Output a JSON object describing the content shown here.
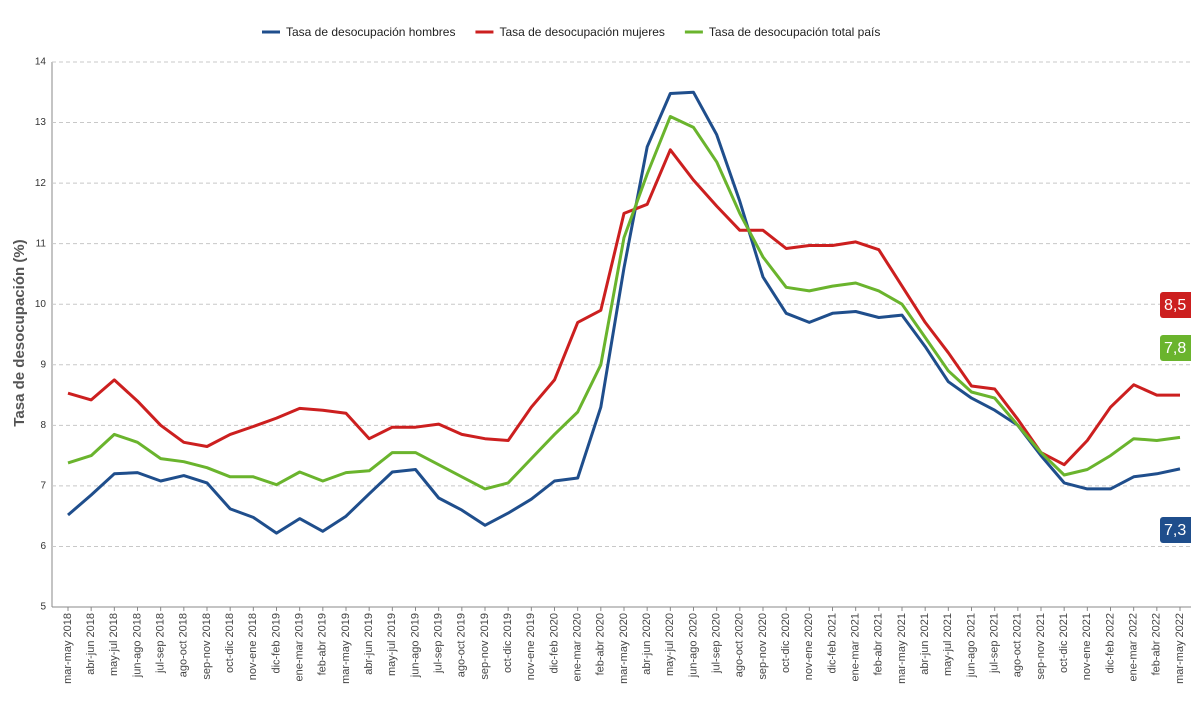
{
  "chart_data": {
    "type": "line",
    "y_label": "Tasa de desocupación (%)",
    "categories": [
      "mar-may 2018",
      "abr-jun 2018",
      "may-jul 2018",
      "jun-ago 2018",
      "jul-sep 2018",
      "ago-oct 2018",
      "sep-nov 2018",
      "oct-dic 2018",
      "nov-ene 2018",
      "dic-feb 2019",
      "ene-mar 2019",
      "feb-abr 2019",
      "mar-may 2019",
      "abr-jun 2019",
      "may-jul 2019",
      "jun-ago 2019",
      "jul-sep 2019",
      "ago-oct 2019",
      "sep-nov 2019",
      "oct-dic 2019",
      "nov-ene 2019",
      "dic-feb 2020",
      "ene-mar 2020",
      "feb-abr 2020",
      "mar-may 2020",
      "abr-jun 2020",
      "may-jul 2020",
      "jun-ago 2020",
      "jul-sep 2020",
      "ago-oct 2020",
      "sep-nov 2020",
      "oct-dic 2020",
      "nov-ene 2020",
      "dic-feb 2021",
      "ene-mar 2021",
      "feb-abr 2021",
      "mar-may 2021",
      "abr-jun 2021",
      "may-jul 2021",
      "jun-ago 2021",
      "jul-sep 2021",
      "ago-oct 2021",
      "sep-nov 2021",
      "oct-dic 2021",
      "nov-ene 2021",
      "dic-feb 2022",
      "ene-mar 2022",
      "feb-abr 2022",
      "mar-may 2022"
    ],
    "series": [
      {
        "name": "Tasa de desocupación hombres",
        "color": "#1f4e8c",
        "end_label": "7,3",
        "values": [
          6.52,
          6.85,
          7.2,
          7.22,
          7.08,
          7.17,
          7.05,
          6.62,
          6.48,
          6.22,
          6.46,
          6.25,
          6.5,
          6.87,
          7.23,
          7.27,
          6.8,
          6.6,
          6.35,
          6.55,
          6.78,
          7.08,
          7.13,
          8.3,
          10.6,
          12.6,
          13.48,
          13.5,
          12.8,
          11.7,
          10.45,
          9.85,
          9.7,
          9.85,
          9.88,
          9.78,
          9.82,
          9.3,
          8.72,
          8.45,
          8.25,
          8.0,
          7.5,
          7.05,
          6.95,
          6.95,
          7.15,
          7.2,
          7.28
        ]
      },
      {
        "name": "Tasa de desocupación mujeres",
        "color": "#cc1f1f",
        "end_label": "8,5",
        "values": [
          8.53,
          8.42,
          8.75,
          8.4,
          8.0,
          7.72,
          7.65,
          7.85,
          7.98,
          8.12,
          8.28,
          8.25,
          8.2,
          7.78,
          7.97,
          7.97,
          8.02,
          7.85,
          7.78,
          7.75,
          8.3,
          8.75,
          9.7,
          9.9,
          11.5,
          11.65,
          12.55,
          12.05,
          11.62,
          11.22,
          11.22,
          10.92,
          10.97,
          10.97,
          11.03,
          10.9,
          10.3,
          9.7,
          9.2,
          8.65,
          8.6,
          8.1,
          7.55,
          7.35,
          7.75,
          8.3,
          8.67,
          8.5,
          8.5
        ]
      },
      {
        "name": "Tasa de desocupación total país",
        "color": "#6ab42d",
        "end_label": "7,8",
        "values": [
          7.38,
          7.5,
          7.85,
          7.72,
          7.45,
          7.4,
          7.3,
          7.15,
          7.15,
          7.02,
          7.23,
          7.08,
          7.22,
          7.25,
          7.55,
          7.55,
          7.35,
          7.15,
          6.95,
          7.05,
          7.45,
          7.85,
          8.22,
          9.0,
          11.1,
          12.15,
          13.1,
          12.92,
          12.35,
          11.5,
          10.78,
          10.28,
          10.22,
          10.3,
          10.35,
          10.22,
          10.0,
          9.45,
          8.9,
          8.55,
          8.45,
          8.0,
          7.55,
          7.18,
          7.27,
          7.5,
          7.78,
          7.75,
          7.8
        ]
      }
    ],
    "ylim": [
      5,
      14
    ],
    "yticks": [
      5,
      6,
      7,
      8,
      9,
      10,
      11,
      12,
      13,
      14
    ],
    "grid": true,
    "legend": "top"
  }
}
